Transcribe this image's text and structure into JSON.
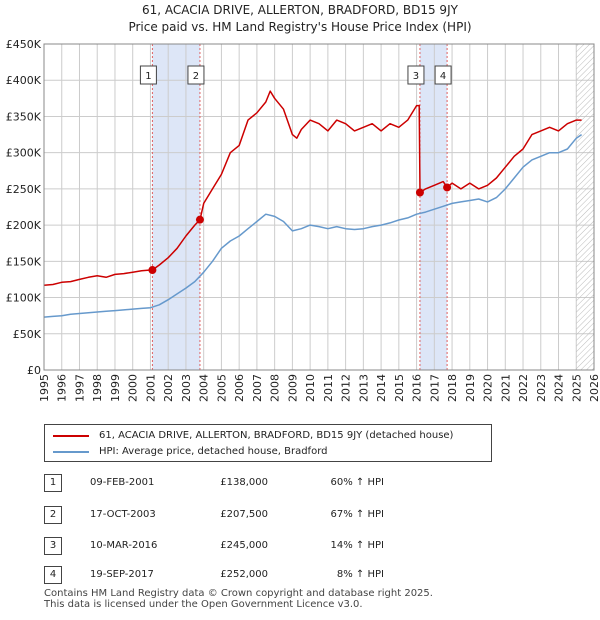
{
  "title": {
    "line1": "61, ACACIA DRIVE, ALLERTON, BRADFORD, BD15 9JY",
    "line2": "Price paid vs. HM Land Registry's House Price Index (HPI)"
  },
  "colors": {
    "price_line": "#cc0000",
    "hpi_line": "#6699cc",
    "shade": "#dde6f7",
    "grid": "#cccccc",
    "marker_line": "#e06060"
  },
  "legend": {
    "price_label": "61, ACACIA DRIVE, ALLERTON, BRADFORD, BD15 9JY (detached house)",
    "hpi_label": "HPI: Average price, detached house, Bradford"
  },
  "transactions": [
    {
      "num": "1",
      "date": "09-FEB-2001",
      "price": "£138,000",
      "hpi": "60% ↑ HPI"
    },
    {
      "num": "2",
      "date": "17-OCT-2003",
      "price": "£207,500",
      "hpi": "67% ↑ HPI"
    },
    {
      "num": "3",
      "date": "10-MAR-2016",
      "price": "£245,000",
      "hpi": "14% ↑ HPI"
    },
    {
      "num": "4",
      "date": "19-SEP-2017",
      "price": "£252,000",
      "hpi": "8% ↑ HPI"
    }
  ],
  "footer": {
    "line1": "Contains HM Land Registry data © Crown copyright and database right 2025.",
    "line2": "This data is licensed under the Open Government Licence v3.0."
  },
  "chart_data": {
    "type": "line",
    "title": "61, ACACIA DRIVE, ALLERTON, BRADFORD, BD15 9JY — Price paid vs. HM Land Registry's House Price Index (HPI)",
    "xlabel": "",
    "ylabel": "",
    "xlim": [
      1995,
      2026
    ],
    "ylim": [
      0,
      450000
    ],
    "x_ticks": [
      1995,
      1996,
      1997,
      1998,
      1999,
      2000,
      2001,
      2002,
      2003,
      2004,
      2005,
      2006,
      2007,
      2008,
      2009,
      2010,
      2011,
      2012,
      2013,
      2014,
      2015,
      2016,
      2017,
      2018,
      2019,
      2020,
      2021,
      2022,
      2023,
      2024,
      2025,
      2026
    ],
    "y_ticks": [
      0,
      50000,
      100000,
      150000,
      200000,
      250000,
      300000,
      350000,
      400000,
      450000
    ],
    "y_tick_labels": [
      "£0",
      "£50K",
      "£100K",
      "£150K",
      "£200K",
      "£250K",
      "£300K",
      "£350K",
      "£400K",
      "£450K"
    ],
    "grid": true,
    "shaded_ranges": [
      [
        2001.11,
        2003.79
      ],
      [
        2016.19,
        2017.72
      ]
    ],
    "future_hatch_from": 2025.0,
    "sales": [
      {
        "label": "1",
        "x": 2001.11,
        "y": 138000
      },
      {
        "label": "2",
        "x": 2003.79,
        "y": 207500
      },
      {
        "label": "3",
        "x": 2016.19,
        "y": 245000
      },
      {
        "label": "4",
        "x": 2017.72,
        "y": 252000
      }
    ],
    "series": [
      {
        "name": "61, ACACIA DRIVE, ALLERTON, BRADFORD, BD15 9JY (detached house)",
        "x": [
          1995.0,
          1995.5,
          1996.0,
          1996.5,
          1997.0,
          1997.5,
          1998.0,
          1998.5,
          1999.0,
          1999.5,
          2000.0,
          2000.5,
          2001.0,
          2001.11,
          2001.5,
          2002.0,
          2002.5,
          2003.0,
          2003.5,
          2003.79,
          2004.0,
          2004.5,
          2005.0,
          2005.5,
          2006.0,
          2006.5,
          2007.0,
          2007.5,
          2007.75,
          2008.0,
          2008.5,
          2009.0,
          2009.25,
          2009.5,
          2010.0,
          2010.5,
          2011.0,
          2011.5,
          2012.0,
          2012.5,
          2013.0,
          2013.5,
          2014.0,
          2014.5,
          2015.0,
          2015.5,
          2016.0,
          2016.15,
          2016.19,
          2016.5,
          2017.0,
          2017.5,
          2017.72,
          2018.0,
          2018.5,
          2019.0,
          2019.5,
          2020.0,
          2020.5,
          2021.0,
          2021.5,
          2022.0,
          2022.5,
          2023.0,
          2023.5,
          2024.0,
          2024.5,
          2025.0,
          2025.3
        ],
        "values": [
          117000,
          118000,
          121000,
          122000,
          125000,
          128000,
          130000,
          128000,
          132000,
          133000,
          135000,
          137000,
          138000,
          138000,
          145000,
          155000,
          168000,
          185000,
          200000,
          207500,
          230000,
          250000,
          270000,
          300000,
          310000,
          345000,
          355000,
          370000,
          385000,
          375000,
          360000,
          325000,
          320000,
          332000,
          345000,
          340000,
          330000,
          345000,
          340000,
          330000,
          335000,
          340000,
          330000,
          340000,
          335000,
          345000,
          365000,
          365000,
          245000,
          250000,
          255000,
          260000,
          252000,
          258000,
          250000,
          258000,
          250000,
          255000,
          265000,
          280000,
          295000,
          305000,
          325000,
          330000,
          335000,
          330000,
          340000,
          345000,
          345000
        ]
      },
      {
        "name": "HPI: Average price, detached house, Bradford",
        "x": [
          1995.0,
          1995.5,
          1996.0,
          1996.5,
          1997.0,
          1997.5,
          1998.0,
          1998.5,
          1999.0,
          1999.5,
          2000.0,
          2000.5,
          2001.0,
          2001.5,
          2002.0,
          2002.5,
          2003.0,
          2003.5,
          2004.0,
          2004.5,
          2005.0,
          2005.5,
          2006.0,
          2006.5,
          2007.0,
          2007.5,
          2008.0,
          2008.5,
          2009.0,
          2009.5,
          2010.0,
          2010.5,
          2011.0,
          2011.5,
          2012.0,
          2012.5,
          2013.0,
          2013.5,
          2014.0,
          2014.5,
          2015.0,
          2015.5,
          2016.0,
          2016.5,
          2017.0,
          2017.5,
          2018.0,
          2018.5,
          2019.0,
          2019.5,
          2020.0,
          2020.5,
          2021.0,
          2021.5,
          2022.0,
          2022.5,
          2023.0,
          2023.5,
          2024.0,
          2024.5,
          2025.0,
          2025.3
        ],
        "values": [
          73000,
          74000,
          75000,
          77000,
          78000,
          79000,
          80000,
          81000,
          82000,
          83000,
          84000,
          85000,
          86000,
          90000,
          97000,
          105000,
          113000,
          122000,
          135000,
          150000,
          168000,
          178000,
          185000,
          195000,
          205000,
          215000,
          212000,
          205000,
          192000,
          195000,
          200000,
          198000,
          195000,
          198000,
          195000,
          194000,
          195000,
          198000,
          200000,
          203000,
          207000,
          210000,
          215000,
          218000,
          222000,
          226000,
          230000,
          232000,
          234000,
          236000,
          232000,
          238000,
          250000,
          265000,
          280000,
          290000,
          295000,
          300000,
          300000,
          305000,
          320000,
          325000
        ]
      }
    ]
  }
}
